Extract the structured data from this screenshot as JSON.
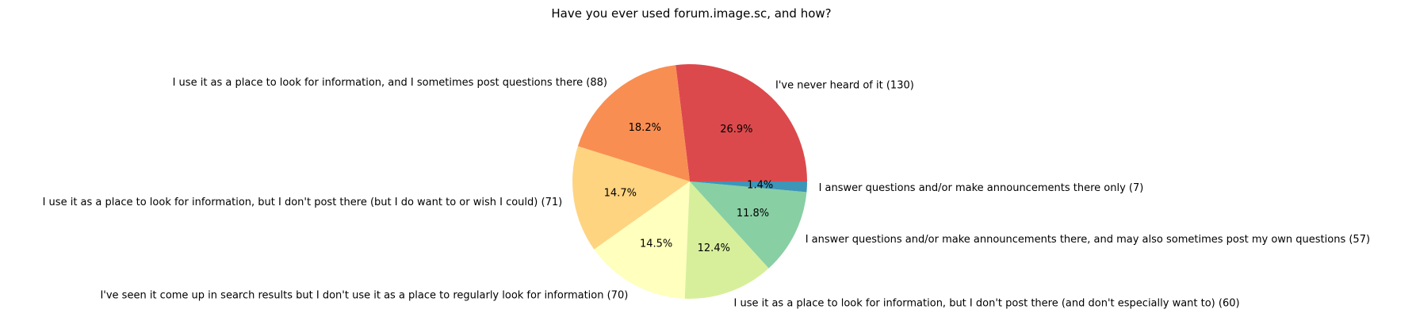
{
  "chart_data": {
    "type": "pie",
    "title": "Have you ever used forum.image.sc, and how?",
    "start_angle_deg": 0,
    "direction": "counterclockwise",
    "slices": [
      {
        "label": "I've never heard of it (130)",
        "value": 130,
        "pct": "26.9%",
        "color": "#DC494C"
      },
      {
        "label": "I use it as a place to look for information, and I sometimes post questions there (88)",
        "value": 88,
        "pct": "18.2%",
        "color": "#F98E52"
      },
      {
        "label": "I use it as a place to look for information, but I don't post there (but I do want to or wish I could) (71)",
        "value": 71,
        "pct": "14.7%",
        "color": "#FED481"
      },
      {
        "label": "I've seen it come up in search results but I don't use it as a place to regularly look for information (70)",
        "value": 70,
        "pct": "14.5%",
        "color": "#FFFFBE"
      },
      {
        "label": "I use it as a place to look for information, but I don't post there (and don't especially want to) (60)",
        "value": 60,
        "pct": "12.4%",
        "color": "#D7EF9B"
      },
      {
        "label": "I answer questions and/or make announcements there, and may also sometimes post my own questions (57)",
        "value": 57,
        "pct": "11.8%",
        "color": "#88CFA4"
      },
      {
        "label": "I answer questions and/or make announcements there only (7)",
        "value": 7,
        "pct": "1.4%",
        "color": "#3D95B8"
      }
    ]
  }
}
